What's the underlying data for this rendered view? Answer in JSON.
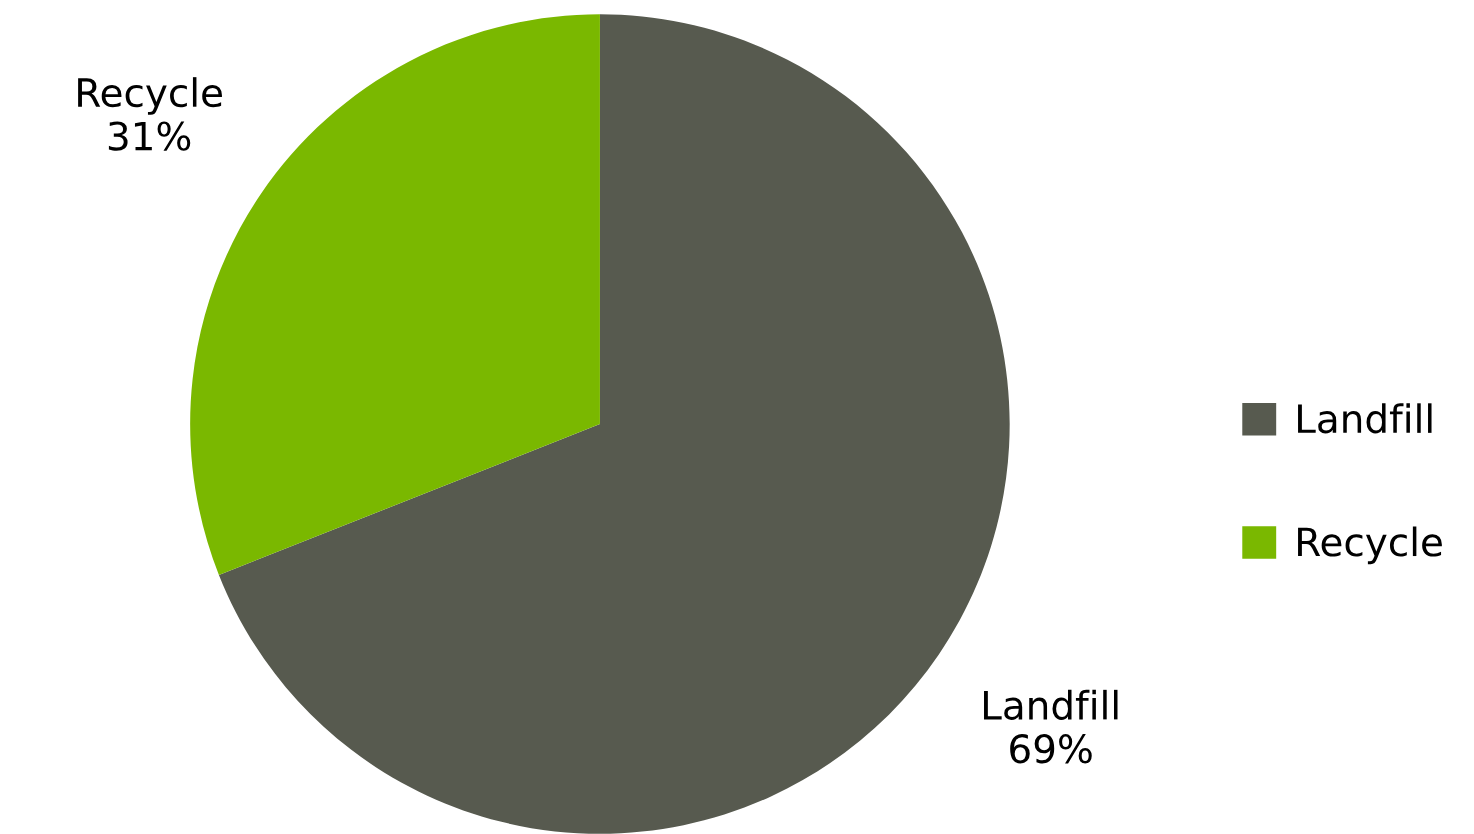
{
  "chart_data": {
    "type": "pie",
    "categories": [
      "Landfill",
      "Recycle"
    ],
    "values": [
      69,
      31
    ],
    "value_labels": [
      "69%",
      "31%"
    ],
    "colors": [
      "#575a4f",
      "#7ab800"
    ],
    "legend": "right"
  }
}
